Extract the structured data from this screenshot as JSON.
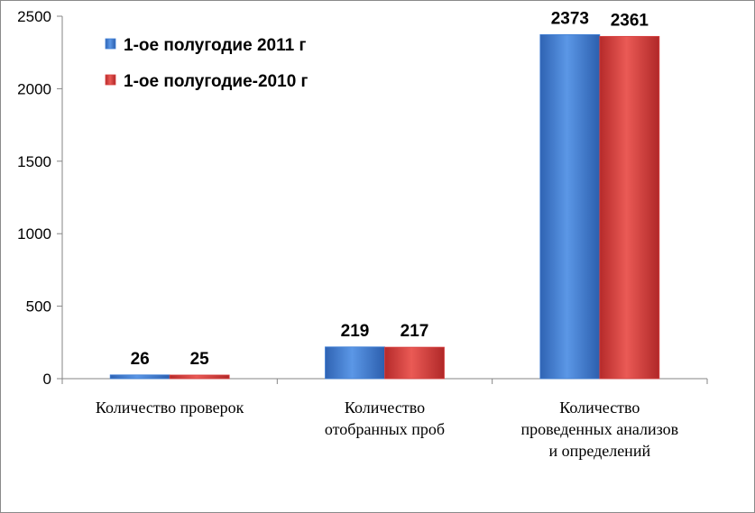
{
  "chart_data": {
    "type": "bar",
    "title": "",
    "xlabel": "",
    "ylabel": "",
    "ylim": [
      0,
      2500
    ],
    "yticks": [
      0,
      500,
      1000,
      1500,
      2000,
      2500
    ],
    "grid": false,
    "legend_position": "top-left",
    "categories": [
      [
        "Количество проверок"
      ],
      [
        "Количество",
        "отобранных проб"
      ],
      [
        "Количество",
        "проведенных анализов",
        "и определений"
      ]
    ],
    "series": [
      {
        "name": "1-ое полугодие 2011 г",
        "color": "#3f7fd6",
        "values": [
          26,
          219,
          2373
        ]
      },
      {
        "name": "1-ое полугодие-2010 г",
        "color": "#d94040",
        "values": [
          25,
          217,
          2361
        ]
      }
    ]
  }
}
